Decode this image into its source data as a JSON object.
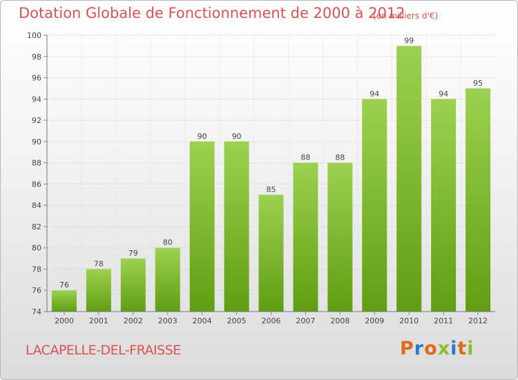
{
  "header": {
    "title": "Dotation Globale de Fonctionnement de 2000 à 2012",
    "subtitle": "(en milliers d'€)"
  },
  "footer": {
    "place": "LACAPELLE-DEL-FRAISSE",
    "logo": "Proxiti"
  },
  "colors": {
    "title": "#d9534f",
    "bar_top": "#9dd150",
    "bar_bottom": "#5f9e12",
    "logo_letters": [
      "#e06a1a",
      "#2a7bc4",
      "#e06a1a",
      "#8bbd2d",
      "#2a7bc4",
      "#e06a1a",
      "#8bbd2d"
    ]
  },
  "chart_data": {
    "type": "bar",
    "categories": [
      "2000",
      "2001",
      "2002",
      "2003",
      "2004",
      "2005",
      "2006",
      "2007",
      "2008",
      "2009",
      "2010",
      "2011",
      "2012"
    ],
    "values": [
      76,
      78,
      79,
      80,
      90,
      90,
      85,
      88,
      88,
      94,
      99,
      94,
      95
    ],
    "ylim": [
      74,
      100
    ],
    "yticks": [
      74,
      76,
      78,
      80,
      82,
      84,
      86,
      88,
      90,
      92,
      94,
      96,
      98,
      100
    ],
    "title": "Dotation Globale de Fonctionnement de 2000 à 2012",
    "xlabel": "",
    "ylabel": "",
    "grid": true,
    "data_labels": true
  }
}
